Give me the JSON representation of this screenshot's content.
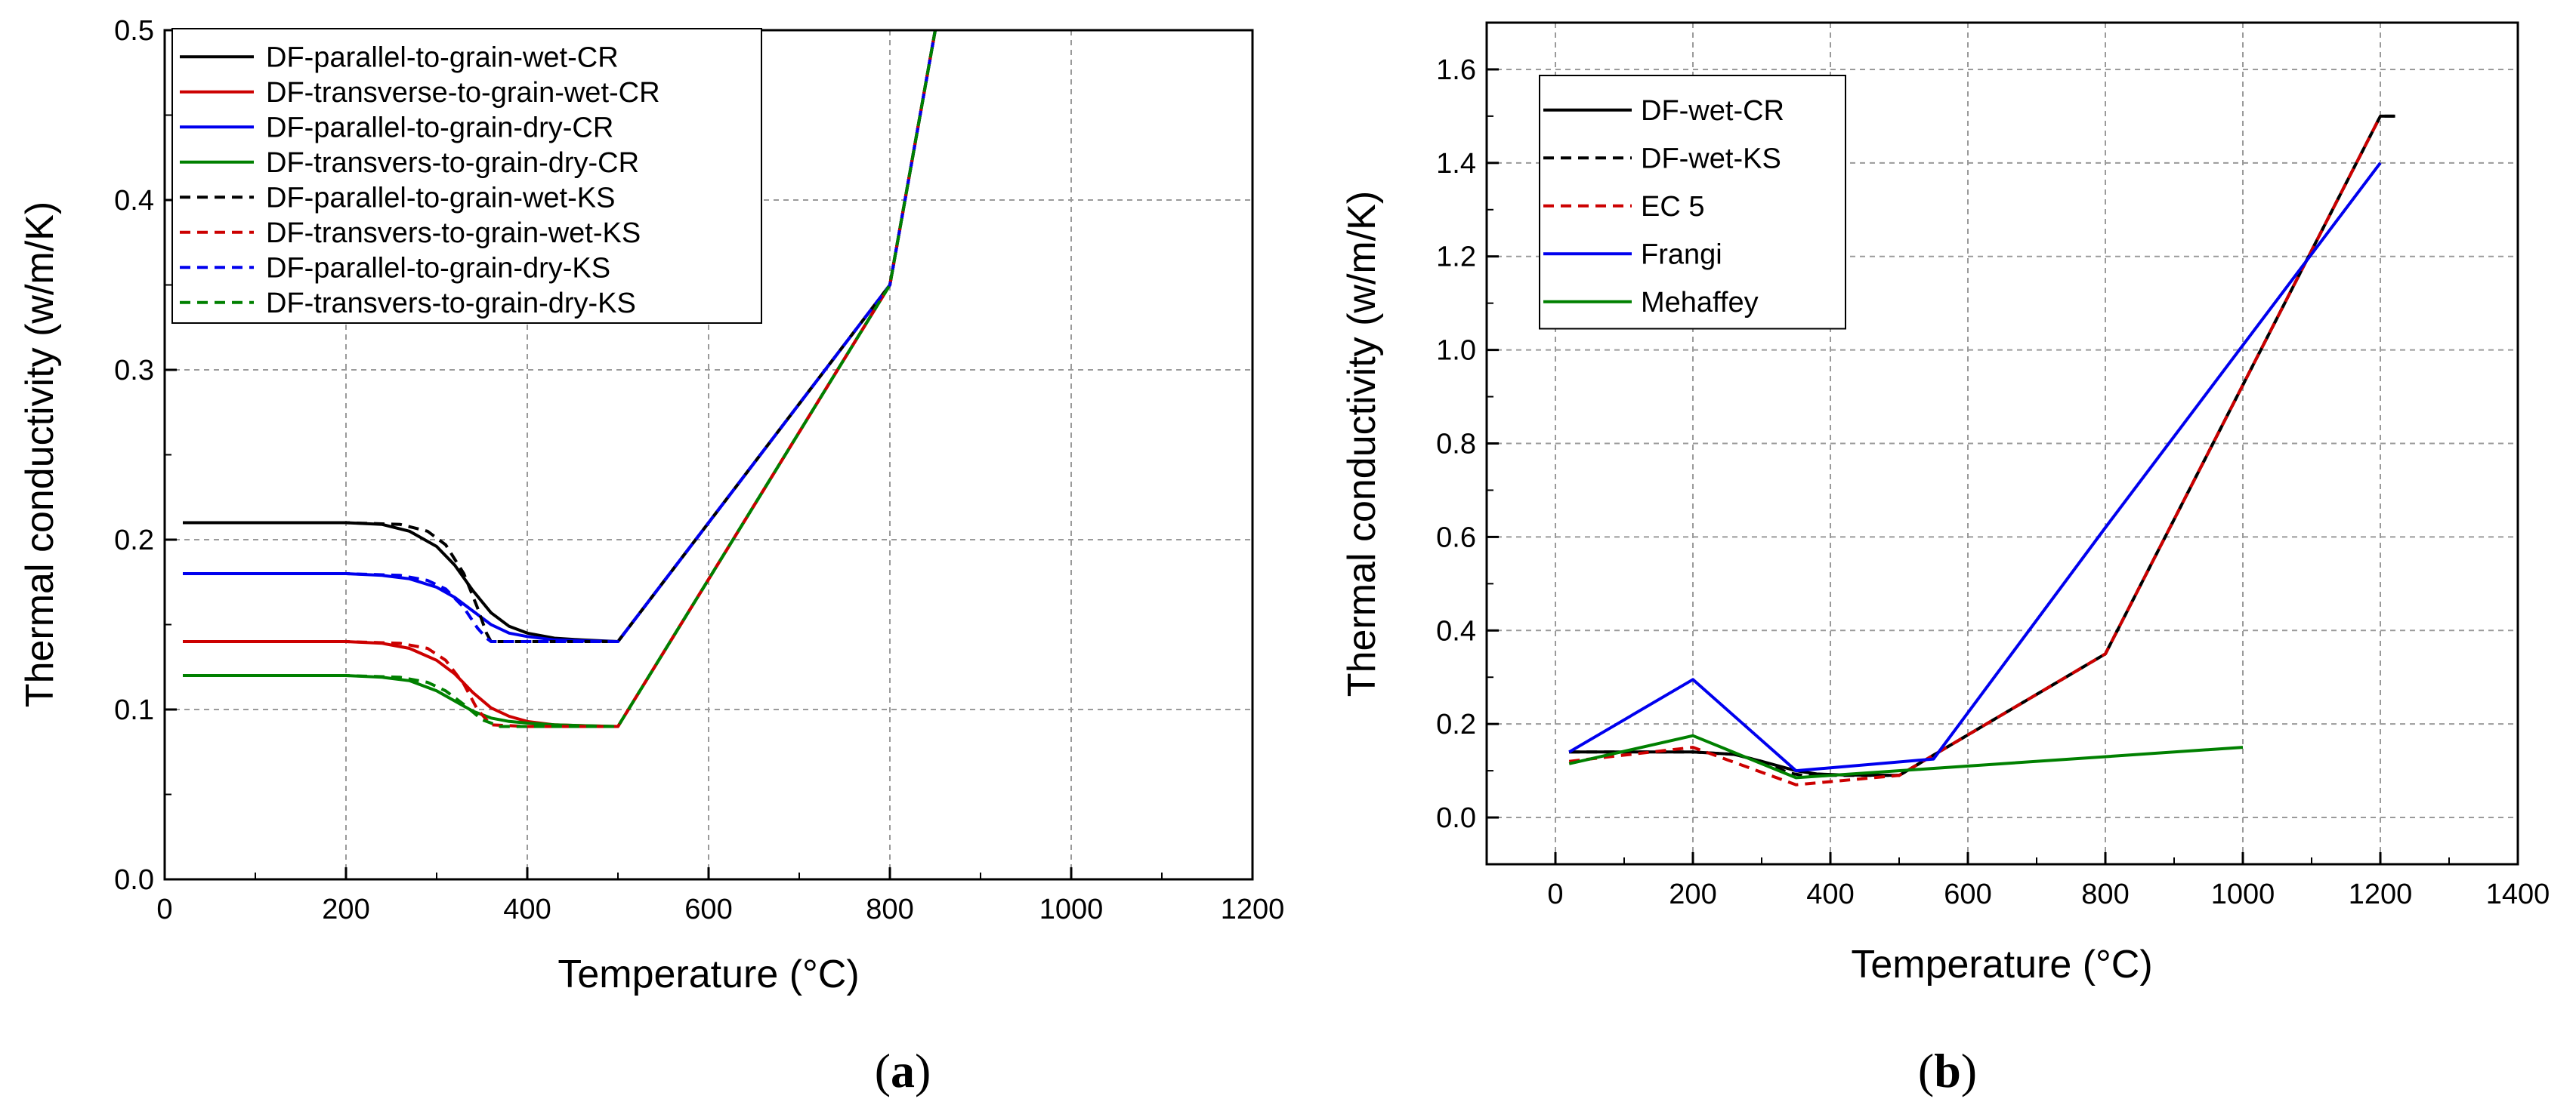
{
  "chart_data": [
    {
      "type": "line",
      "panel": "a",
      "caption": {
        "open": "(",
        "letter": "a",
        "close": ")"
      },
      "xlabel": "Temperature (°C)",
      "ylabel": "Thermal conductivity (w/m/K)",
      "xlim": [
        0,
        1200
      ],
      "ylim": [
        0,
        0.5
      ],
      "xticks": [
        0,
        200,
        400,
        600,
        800,
        1000,
        1200
      ],
      "yticks": [
        0.0,
        0.1,
        0.2,
        0.3,
        0.4,
        0.5
      ],
      "ytick_labels": [
        "0.0",
        "0.1",
        "0.2",
        "0.3",
        "0.4",
        "0.5"
      ],
      "grid": true,
      "legend_position": "top-left",
      "series": [
        {
          "name": "DF-parallel-to-grain-wet-CR",
          "color": "#000000",
          "dash": "solid",
          "x": [
            20,
            200,
            240,
            270,
            300,
            320,
            340,
            360,
            380,
            400,
            430,
            460,
            500,
            800,
            850
          ],
          "y": [
            0.21,
            0.21,
            0.209,
            0.205,
            0.196,
            0.185,
            0.17,
            0.157,
            0.149,
            0.145,
            0.142,
            0.141,
            0.14,
            0.35,
            0.5
          ]
        },
        {
          "name": "DF-transverse-to-grain-wet-CR",
          "color": "#cc0000",
          "dash": "solid",
          "x": [
            20,
            200,
            240,
            270,
            300,
            320,
            340,
            360,
            380,
            400,
            430,
            460,
            500,
            800,
            850
          ],
          "y": [
            0.14,
            0.14,
            0.139,
            0.136,
            0.129,
            0.121,
            0.11,
            0.101,
            0.096,
            0.093,
            0.091,
            0.0905,
            0.09,
            0.35,
            0.5
          ]
        },
        {
          "name": "DF-parallel-to-grain-dry-CR",
          "color": "#0000ee",
          "dash": "solid",
          "x": [
            20,
            200,
            240,
            270,
            300,
            320,
            340,
            360,
            380,
            400,
            430,
            460,
            500,
            800,
            850
          ],
          "y": [
            0.18,
            0.18,
            0.179,
            0.177,
            0.172,
            0.166,
            0.158,
            0.15,
            0.145,
            0.143,
            0.141,
            0.1405,
            0.14,
            0.35,
            0.5
          ]
        },
        {
          "name": "DF-transvers-to-grain-dry-CR",
          "color": "#008000",
          "dash": "solid",
          "x": [
            20,
            200,
            240,
            270,
            300,
            320,
            340,
            360,
            380,
            400,
            430,
            460,
            500,
            800,
            850
          ],
          "y": [
            0.12,
            0.12,
            0.119,
            0.117,
            0.111,
            0.105,
            0.099,
            0.095,
            0.093,
            0.092,
            0.091,
            0.0905,
            0.09,
            0.35,
            0.5
          ]
        },
        {
          "name": "DF-parallel-to-grain-wet-KS",
          "color": "#000000",
          "dash": "dashed",
          "x": [
            20,
            200,
            260,
            290,
            310,
            330,
            345,
            355,
            360,
            500,
            800,
            850
          ],
          "y": [
            0.21,
            0.21,
            0.209,
            0.205,
            0.197,
            0.18,
            0.16,
            0.145,
            0.14,
            0.14,
            0.35,
            0.5
          ]
        },
        {
          "name": "DF-transvers-to-grain-wet-KS",
          "color": "#cc0000",
          "dash": "dashed",
          "x": [
            20,
            200,
            260,
            290,
            310,
            330,
            345,
            360,
            400,
            500,
            800,
            850
          ],
          "y": [
            0.14,
            0.14,
            0.139,
            0.136,
            0.129,
            0.115,
            0.1,
            0.091,
            0.09,
            0.09,
            0.35,
            0.5
          ]
        },
        {
          "name": "DF-parallel-to-grain-dry-KS",
          "color": "#0000ee",
          "dash": "dashed",
          "x": [
            20,
            200,
            260,
            290,
            310,
            330,
            345,
            355,
            360,
            500,
            800,
            850
          ],
          "y": [
            0.18,
            0.18,
            0.179,
            0.176,
            0.171,
            0.16,
            0.148,
            0.142,
            0.14,
            0.14,
            0.35,
            0.5
          ]
        },
        {
          "name": "DF-transvers-to-grain-dry-KS",
          "color": "#008000",
          "dash": "dashed",
          "x": [
            20,
            200,
            260,
            290,
            310,
            330,
            350,
            370,
            400,
            500,
            800,
            850
          ],
          "y": [
            0.12,
            0.12,
            0.119,
            0.116,
            0.111,
            0.103,
            0.094,
            0.09,
            0.09,
            0.09,
            0.35,
            0.5
          ]
        }
      ]
    },
    {
      "type": "line",
      "panel": "b",
      "caption": {
        "open": "(",
        "letter": "b",
        "close": ")"
      },
      "xlabel": "Temperature (°C)",
      "ylabel": "Thermal conductivity (w/m/K)",
      "xlim": [
        -100,
        1400
      ],
      "ylim": [
        -0.1,
        1.7
      ],
      "xticks": [
        0,
        200,
        400,
        600,
        800,
        1000,
        1200,
        1400
      ],
      "yticks": [
        0.0,
        0.2,
        0.4,
        0.6,
        0.8,
        1.0,
        1.2,
        1.4,
        1.6
      ],
      "ytick_labels": [
        "0.0",
        "0.2",
        "0.4",
        "0.6",
        "0.8",
        "1.0",
        "1.2",
        "1.4",
        "1.6"
      ],
      "grid": true,
      "legend_position": "top-left",
      "series": [
        {
          "name": "DF-wet-CR",
          "color": "#000000",
          "dash": "solid",
          "x": [
            20,
            200,
            260,
            300,
            350,
            380,
            420,
            500,
            800,
            1200,
            1220
          ],
          "y": [
            0.14,
            0.14,
            0.135,
            0.12,
            0.1,
            0.093,
            0.091,
            0.09,
            0.35,
            1.5,
            1.5
          ]
        },
        {
          "name": "DF-wet-KS",
          "color": "#000000",
          "dash": "dashed",
          "x": [
            20,
            200,
            260,
            300,
            340,
            360,
            500,
            800,
            1200,
            1230
          ],
          "y": [
            0.14,
            0.14,
            0.135,
            0.12,
            0.095,
            0.09,
            0.09,
            0.35,
            1.5,
            1.5
          ]
        },
        {
          "name": "EC 5",
          "color": "#cc0000",
          "dash": "dashed",
          "x": [
            20,
            200,
            350,
            500,
            800,
            1200
          ],
          "y": [
            0.12,
            0.15,
            0.07,
            0.09,
            0.35,
            1.5
          ]
        },
        {
          "name": "Frangi",
          "color": "#0000ee",
          "dash": "solid",
          "x": [
            20,
            200,
            350,
            550,
            800,
            1200
          ],
          "y": [
            0.14,
            0.295,
            0.1,
            0.125,
            0.62,
            1.4
          ]
        },
        {
          "name": "Mehaffey",
          "color": "#008000",
          "dash": "solid",
          "x": [
            20,
            200,
            350,
            1000
          ],
          "y": [
            0.115,
            0.175,
            0.085,
            0.15
          ]
        }
      ]
    }
  ]
}
